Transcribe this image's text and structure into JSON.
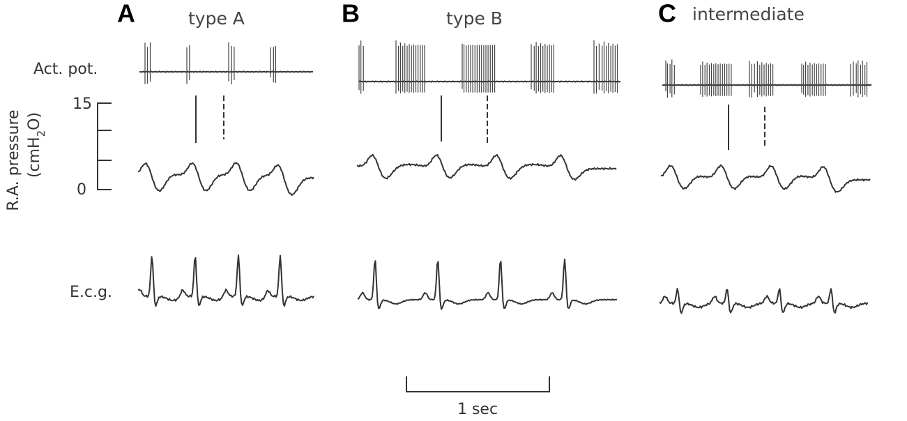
{
  "panels": [
    {
      "letter": "A",
      "title": "type A"
    },
    {
      "letter": "B",
      "title": "type B"
    },
    {
      "letter": "C",
      "title": "intermediate"
    }
  ],
  "row_labels": {
    "action_potential": "Act. pot.",
    "ecg": "E.c.g."
  },
  "pressure_axis": {
    "label": "R.A. pressure",
    "unit_open": "(cmH",
    "unit_sub": "2",
    "unit_close": "O)",
    "tick_top": "15",
    "tick_bottom": "0"
  },
  "scale_bar": {
    "label": "1 sec"
  }
}
